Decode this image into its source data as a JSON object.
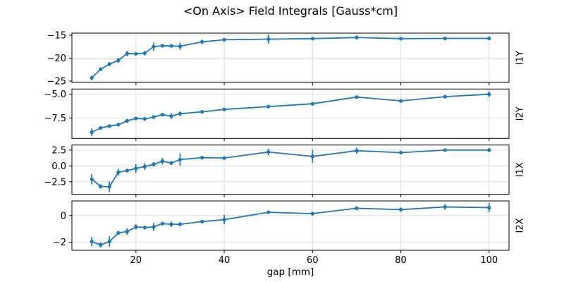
{
  "chart_data": {
    "type": "line",
    "title": "<On Axis> Field Integrals [Gauss*cm]",
    "xlabel": "gap [mm]",
    "grid": true,
    "legend": "none",
    "marker": "point",
    "error_bars": true,
    "x": [
      10,
      12,
      14,
      16,
      18,
      20,
      22,
      24,
      26,
      28,
      30,
      35,
      40,
      50,
      60,
      70,
      80,
      90,
      100
    ],
    "xlim": [
      5.5,
      104.5
    ],
    "x_ticks": [
      {
        "value": 20,
        "label": "20"
      },
      {
        "value": 40,
        "label": "40"
      },
      {
        "value": 60,
        "label": "60"
      },
      {
        "value": 80,
        "label": "80"
      },
      {
        "value": 100,
        "label": "100"
      }
    ],
    "subplots": [
      {
        "label": "I1Y",
        "ylim": [
          -25.3,
          -14.55
        ],
        "y_ticks": [
          {
            "value": -15,
            "label": "−15"
          },
          {
            "value": -20,
            "label": "−20"
          },
          {
            "value": -25,
            "label": "−25"
          }
        ],
        "values": [
          -24.3,
          -22.4,
          -21.3,
          -20.5,
          -19.0,
          -19.05,
          -18.9,
          -17.5,
          -17.3,
          -17.35,
          -17.4,
          -16.45,
          -16.0,
          -15.85,
          -15.75,
          -15.5,
          -15.75,
          -15.7,
          -15.7
        ],
        "errors": [
          0.5,
          0.35,
          0.45,
          0.55,
          0.6,
          0.2,
          0.5,
          0.9,
          0.3,
          0.3,
          0.8,
          0.5,
          0.2,
          1.0,
          0.2,
          0.45,
          0.2,
          0.2,
          0.35
        ]
      },
      {
        "label": "I2Y",
        "ylim": [
          -9.65,
          -4.45
        ],
        "y_ticks": [
          {
            "value": -5.0,
            "label": "−5.0"
          },
          {
            "value": -7.5,
            "label": "−7.5"
          }
        ],
        "values": [
          -9.0,
          -8.55,
          -8.35,
          -8.2,
          -7.8,
          -7.55,
          -7.6,
          -7.4,
          -7.15,
          -7.3,
          -7.05,
          -6.85,
          -6.6,
          -6.3,
          -6.0,
          -5.3,
          -5.7,
          -5.25,
          -5.0
        ],
        "errors": [
          0.4,
          0.2,
          0.15,
          0.2,
          0.2,
          0.15,
          0.2,
          0.15,
          0.15,
          0.3,
          0.25,
          0.15,
          0.15,
          0.2,
          0.15,
          0.15,
          0.15,
          0.15,
          0.3
        ]
      },
      {
        "label": "I1X",
        "ylim": [
          -4.5,
          3.3
        ],
        "y_ticks": [
          {
            "value": 2.5,
            "label": "2.5"
          },
          {
            "value": 0.0,
            "label": "0.0"
          },
          {
            "value": -2.5,
            "label": "−2.5"
          }
        ],
        "values": [
          -2.1,
          -3.25,
          -3.3,
          -1.0,
          -0.75,
          -0.4,
          -0.1,
          0.25,
          0.75,
          0.45,
          1.0,
          1.3,
          1.25,
          2.2,
          1.5,
          2.4,
          2.1,
          2.5,
          2.5
        ],
        "errors": [
          0.8,
          0.35,
          0.85,
          0.55,
          0.3,
          0.7,
          0.55,
          0.35,
          0.55,
          0.3,
          1.0,
          0.3,
          0.25,
          0.5,
          1.0,
          0.5,
          0.25,
          0.2,
          0.3
        ]
      },
      {
        "label": "I2X",
        "ylim": [
          -2.6,
          1.1
        ],
        "y_ticks": [
          {
            "value": 0,
            "label": "0"
          },
          {
            "value": -2,
            "label": "−2"
          }
        ],
        "values": [
          -1.95,
          -2.2,
          -1.95,
          -1.3,
          -1.2,
          -0.85,
          -0.9,
          -0.85,
          -0.6,
          -0.65,
          -0.65,
          -0.45,
          -0.3,
          0.25,
          0.15,
          0.55,
          0.45,
          0.65,
          0.6
        ],
        "errors": [
          0.35,
          0.2,
          0.4,
          0.15,
          0.25,
          0.2,
          0.15,
          0.3,
          0.15,
          0.2,
          0.15,
          0.1,
          0.35,
          0.1,
          0.15,
          0.15,
          0.15,
          0.2,
          0.35
        ]
      }
    ],
    "colors": {
      "line": "#1f77b4",
      "grid": "#dddddd",
      "spine": "#000000",
      "text": "#000000",
      "background": "#ffffff"
    }
  }
}
